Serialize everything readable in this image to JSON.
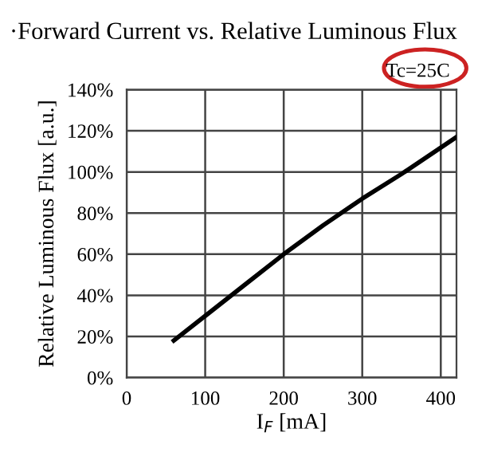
{
  "chart_data": {
    "type": "line",
    "title": "·Forward Current vs. Relative Luminous Flux",
    "xlabel": "I$_{F}$ [mA]",
    "ylabel": "Relative Luminous Flux [a.u.]",
    "annotations": [
      "Tc=25C"
    ],
    "series": [
      {
        "color": "#000000",
        "x": [
          60,
          100,
          150,
          200,
          250,
          300,
          350,
          420
        ],
        "values": [
          18,
          30,
          45,
          60,
          74,
          87,
          99,
          117
        ]
      }
    ],
    "xlim": [
      0,
      420
    ],
    "xticks": [
      0,
      100,
      200,
      300,
      400
    ],
    "ylim": [
      0,
      140
    ],
    "yticks": [
      {
        "value": 0,
        "label": "0%"
      },
      {
        "value": 20,
        "label": "20%"
      },
      {
        "value": 40,
        "label": "40%"
      },
      {
        "value": 60,
        "label": "60%"
      },
      {
        "value": 80,
        "label": "80%"
      },
      {
        "value": 100,
        "label": "100%"
      },
      {
        "value": 120,
        "label": "120%"
      },
      {
        "value": 140,
        "label": "140%"
      }
    ],
    "grid": true,
    "line_style": "solid"
  }
}
